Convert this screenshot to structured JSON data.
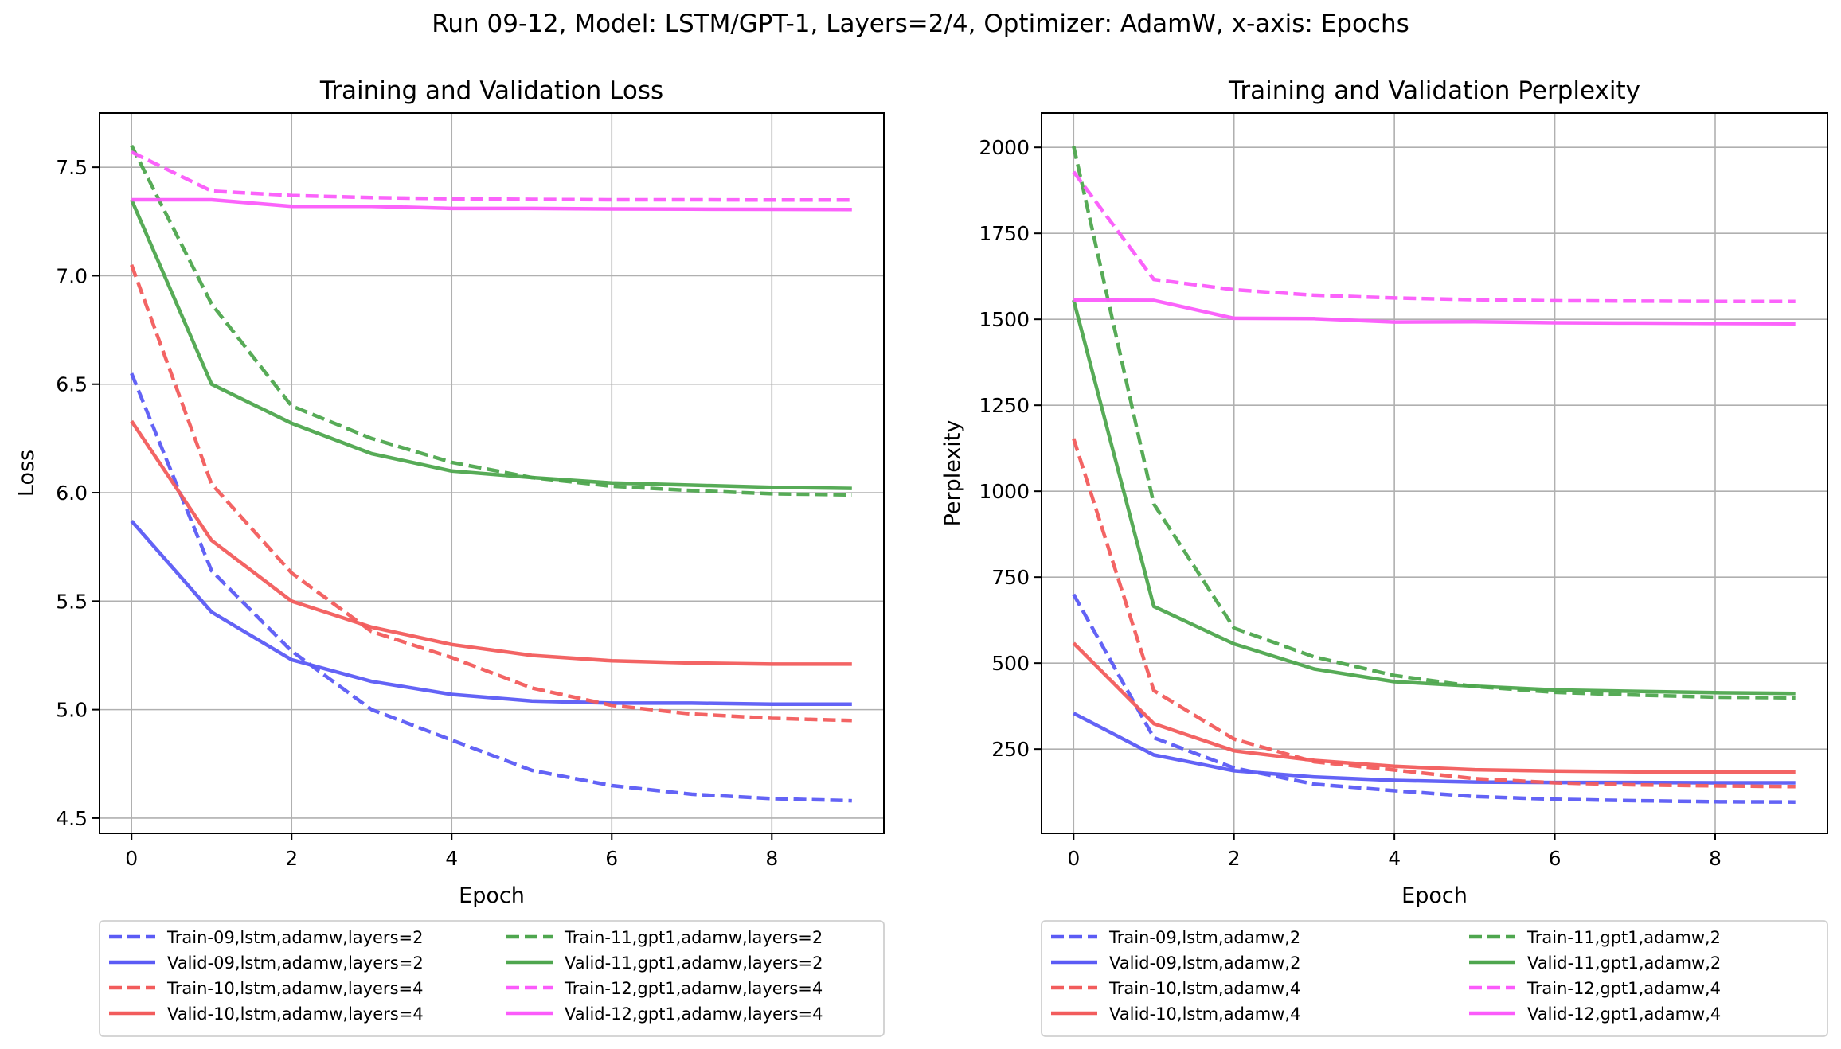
{
  "suptitle": "Run 09-12, Model: LSTM/GPT-1, Layers=2/4, Optimizer: AdamW, x-axis: Epochs",
  "colors": {
    "blue": "#5b5bf5",
    "red": "#f25c5c",
    "green": "#4ea64e",
    "magenta": "#fb5bfb",
    "grid": "#b0b0b0"
  },
  "chart_data": [
    {
      "type": "line",
      "title": "Training and Validation Loss",
      "xlabel": "Epoch",
      "ylabel": "Loss",
      "xlim": [
        -0.4,
        9.4
      ],
      "ylim": [
        4.43,
        7.75
      ],
      "xticks": [
        0,
        2,
        4,
        6,
        8
      ],
      "yticks": [
        4.5,
        5.0,
        5.5,
        6.0,
        6.5,
        7.0,
        7.5
      ],
      "ytick_labels": [
        "4.5",
        "5.0",
        "5.5",
        "6.0",
        "6.5",
        "7.0",
        "7.5"
      ],
      "grid": true,
      "legend_position": "below",
      "legend_columns": 2,
      "x": [
        0,
        1,
        2,
        3,
        4,
        5,
        6,
        7,
        8,
        9
      ],
      "series": [
        {
          "name": "Train-09,lstm,adamw,layers=2",
          "color": "blue",
          "style": "dashed",
          "values": [
            6.55,
            5.64,
            5.27,
            5.0,
            4.86,
            4.72,
            4.65,
            4.61,
            4.59,
            4.58
          ]
        },
        {
          "name": "Valid-09,lstm,adamw,layers=2",
          "color": "blue",
          "style": "solid",
          "values": [
            5.87,
            5.45,
            5.23,
            5.13,
            5.07,
            5.04,
            5.03,
            5.03,
            5.025,
            5.025
          ]
        },
        {
          "name": "Train-10,lstm,adamw,layers=4",
          "color": "red",
          "style": "dashed",
          "values": [
            7.05,
            6.04,
            5.63,
            5.36,
            5.24,
            5.1,
            5.02,
            4.98,
            4.96,
            4.95
          ]
        },
        {
          "name": "Valid-10,lstm,adamw,layers=4",
          "color": "red",
          "style": "solid",
          "values": [
            6.33,
            5.78,
            5.5,
            5.38,
            5.3,
            5.25,
            5.225,
            5.215,
            5.21,
            5.21
          ]
        },
        {
          "name": "Train-11,gpt1,adamw,layers=2",
          "color": "green",
          "style": "dashed",
          "values": [
            7.6,
            6.87,
            6.4,
            6.25,
            6.14,
            6.07,
            6.03,
            6.01,
            5.995,
            5.99
          ]
        },
        {
          "name": "Valid-11,gpt1,adamw,layers=2",
          "color": "green",
          "style": "solid",
          "values": [
            7.35,
            6.5,
            6.32,
            6.18,
            6.1,
            6.07,
            6.045,
            6.035,
            6.025,
            6.02
          ]
        },
        {
          "name": "Train-12,gpt1,adamw,layers=4",
          "color": "magenta",
          "style": "dashed",
          "values": [
            7.57,
            7.39,
            7.37,
            7.36,
            7.355,
            7.352,
            7.35,
            7.35,
            7.349,
            7.349
          ]
        },
        {
          "name": "Valid-12,gpt1,adamw,layers=4",
          "color": "magenta",
          "style": "solid",
          "values": [
            7.35,
            7.35,
            7.32,
            7.32,
            7.31,
            7.31,
            7.308,
            7.307,
            7.306,
            7.305
          ]
        }
      ]
    },
    {
      "type": "line",
      "title": "Training and Validation Perplexity",
      "xlabel": "Epoch",
      "ylabel": "Perplexity",
      "xlim": [
        -0.4,
        9.4
      ],
      "ylim": [
        5,
        2100
      ],
      "xticks": [
        0,
        2,
        4,
        6,
        8
      ],
      "yticks": [
        250,
        500,
        750,
        1000,
        1250,
        1500,
        1750,
        2000
      ],
      "ytick_labels": [
        "250",
        "500",
        "750",
        "1000",
        "1250",
        "1500",
        "1750",
        "2000"
      ],
      "grid": true,
      "legend_position": "below",
      "legend_columns": 2,
      "x": [
        0,
        1,
        2,
        3,
        4,
        5,
        6,
        7,
        8,
        9
      ],
      "series": [
        {
          "name": "Train-09,lstm,adamw,2",
          "color": "blue",
          "style": "dashed",
          "values": [
            700,
            283,
            195,
            148,
            129,
            112,
            104,
            100,
            97,
            96
          ]
        },
        {
          "name": "Valid-09,lstm,adamw,2",
          "color": "blue",
          "style": "solid",
          "values": [
            354,
            233,
            187,
            169,
            159,
            154,
            153,
            153,
            152,
            152
          ]
        },
        {
          "name": "Train-10,lstm,adamw,4",
          "color": "red",
          "style": "dashed",
          "values": [
            1153,
            420,
            279,
            213,
            189,
            164,
            152,
            146,
            143,
            141
          ]
        },
        {
          "name": "Valid-10,lstm,adamw,4",
          "color": "red",
          "style": "solid",
          "values": [
            558,
            324,
            245,
            217,
            200,
            190,
            186,
            184,
            183,
            183
          ]
        },
        {
          "name": "Train-11,gpt1,adamw,2",
          "color": "green",
          "style": "dashed",
          "values": [
            2003,
            963,
            602,
            518,
            464,
            432,
            415,
            407,
            401,
            399
          ]
        },
        {
          "name": "Valid-11,gpt1,adamw,2",
          "color": "green",
          "style": "solid",
          "values": [
            1556,
            665,
            556,
            483,
            446,
            433,
            422,
            418,
            414,
            412
          ]
        },
        {
          "name": "Train-12,gpt1,adamw,4",
          "color": "magenta",
          "style": "dashed",
          "values": [
            1929,
            1616,
            1586,
            1570,
            1562,
            1557,
            1554,
            1553,
            1552,
            1552
          ]
        },
        {
          "name": "Valid-12,gpt1,adamw,4",
          "color": "magenta",
          "style": "solid",
          "values": [
            1556,
            1555,
            1503,
            1502,
            1492,
            1493,
            1490,
            1489,
            1488,
            1487
          ]
        }
      ]
    }
  ]
}
